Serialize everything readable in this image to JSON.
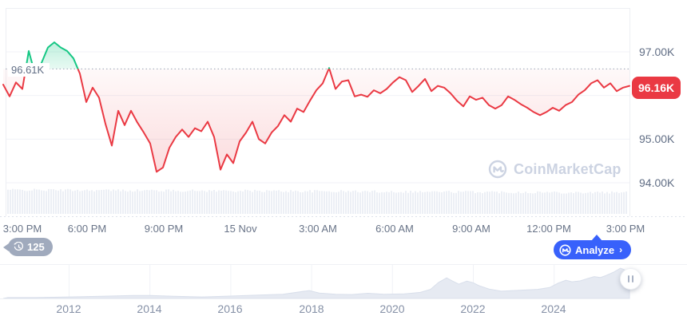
{
  "colors": {
    "red": "#ea3943",
    "green": "#16c784",
    "blue": "#3861fb",
    "badge_gray": "#a0aabd",
    "watermark_gray": "#ccd3e2",
    "grid": "#f0f2f7",
    "volume_bar": "#eceff5",
    "minimap_fill": "#e6eaf2"
  },
  "y_axis": {
    "labels": [
      "97.00K",
      "95.00K",
      "94.00K"
    ]
  },
  "badge": {
    "label": "96.16K"
  },
  "baseline": {
    "label": "96.61K"
  },
  "x_axis": {
    "ticks": [
      "3:00 PM",
      "6:00 PM",
      "9:00 PM",
      "15 Nov",
      "3:00 AM",
      "6:00 AM",
      "9:00 AM",
      "12:00 PM",
      "3:00 PM"
    ]
  },
  "toolbar": {
    "history_count": "125",
    "analyze_label": "Analyze",
    "analyze_chevron": "›"
  },
  "watermark": {
    "label": "CoinMarketCap"
  },
  "minimap_labels": {
    "years": [
      "2012",
      "2014",
      "2016",
      "2018",
      "2020",
      "2022",
      "2024"
    ]
  },
  "chart_data": {
    "type": "line",
    "title": "",
    "x_tick_labels": [
      "3:00 PM",
      "6:00 PM",
      "9:00 PM",
      "15 Nov",
      "3:00 AM",
      "6:00 AM",
      "9:00 AM",
      "12:00 PM",
      "3:00 PM"
    ],
    "y_tick_labels": [
      "97.00K",
      "95.00K",
      "94.00K"
    ],
    "y_grid_values": [
      97,
      96,
      95,
      94
    ],
    "ylim": [
      93.9,
      98.0
    ],
    "unit": "K USD",
    "baseline_value": 96.61,
    "last_value": 96.16,
    "legend": "none",
    "grid": "horizontal only, dotted baseline at 96.61K",
    "prices": [
      96.25,
      95.98,
      96.3,
      96.15,
      97.02,
      96.48,
      96.75,
      97.1,
      97.22,
      97.1,
      97.02,
      96.85,
      96.5,
      95.85,
      96.18,
      95.95,
      95.35,
      94.85,
      95.65,
      95.32,
      95.65,
      95.38,
      95.15,
      94.9,
      94.25,
      94.35,
      94.8,
      95.05,
      95.22,
      95.05,
      95.25,
      95.18,
      95.4,
      95.05,
      94.3,
      94.65,
      94.45,
      94.95,
      95.15,
      95.4,
      95.0,
      94.9,
      95.15,
      95.3,
      95.55,
      95.4,
      95.7,
      95.62,
      95.88,
      96.12,
      96.28,
      96.63,
      96.15,
      96.32,
      96.35,
      95.98,
      96.02,
      95.97,
      96.12,
      96.05,
      96.15,
      96.3,
      96.42,
      96.35,
      96.08,
      96.22,
      96.38,
      96.1,
      96.22,
      96.18,
      96.05,
      95.88,
      95.75,
      95.98,
      95.9,
      95.95,
      95.78,
      95.7,
      95.78,
      95.98,
      95.9,
      95.8,
      95.72,
      95.62,
      95.55,
      95.62,
      95.72,
      95.65,
      95.78,
      95.85,
      96.02,
      96.12,
      96.28,
      96.35,
      96.18,
      96.28,
      96.1,
      96.18,
      96.22
    ],
    "volume_bars": "dense unlabeled light-gray bars along chart bottom, roughly uniform height",
    "minimap": {
      "type": "area",
      "year_ticks": [
        2012,
        2014,
        2016,
        2018,
        2020,
        2022,
        2024
      ],
      "points": [
        [
          2010.5,
          0.03
        ],
        [
          2011.2,
          0.03
        ],
        [
          2012,
          0.05
        ],
        [
          2012.8,
          0.07
        ],
        [
          2013.6,
          0.1
        ],
        [
          2014,
          0.1
        ],
        [
          2014.6,
          0.07
        ],
        [
          2015.3,
          0.05
        ],
        [
          2016,
          0.08
        ],
        [
          2016.7,
          0.11
        ],
        [
          2017.3,
          0.14
        ],
        [
          2017.95,
          0.26
        ],
        [
          2018.2,
          0.18
        ],
        [
          2018.6,
          0.14
        ],
        [
          2019,
          0.13
        ],
        [
          2019.4,
          0.17
        ],
        [
          2019.8,
          0.14
        ],
        [
          2020.3,
          0.15
        ],
        [
          2020.7,
          0.2
        ],
        [
          2020.95,
          0.3
        ],
        [
          2021.15,
          0.53
        ],
        [
          2021.35,
          0.68
        ],
        [
          2021.5,
          0.57
        ],
        [
          2021.65,
          0.47
        ],
        [
          2021.85,
          0.57
        ],
        [
          2022,
          0.52
        ],
        [
          2022.15,
          0.42
        ],
        [
          2022.4,
          0.31
        ],
        [
          2022.7,
          0.24
        ],
        [
          2023,
          0.26
        ],
        [
          2023.3,
          0.28
        ],
        [
          2023.6,
          0.3
        ],
        [
          2023.9,
          0.36
        ],
        [
          2024.1,
          0.5
        ],
        [
          2024.3,
          0.6
        ],
        [
          2024.45,
          0.55
        ],
        [
          2024.65,
          0.58
        ],
        [
          2024.85,
          0.66
        ],
        [
          2025,
          0.72
        ],
        [
          2025.15,
          0.69
        ],
        [
          2025.3,
          0.76
        ],
        [
          2025.5,
          0.88
        ],
        [
          2025.65,
          1.0
        ],
        [
          2025.78,
          0.93
        ],
        [
          2025.9,
          0.82
        ]
      ]
    }
  }
}
